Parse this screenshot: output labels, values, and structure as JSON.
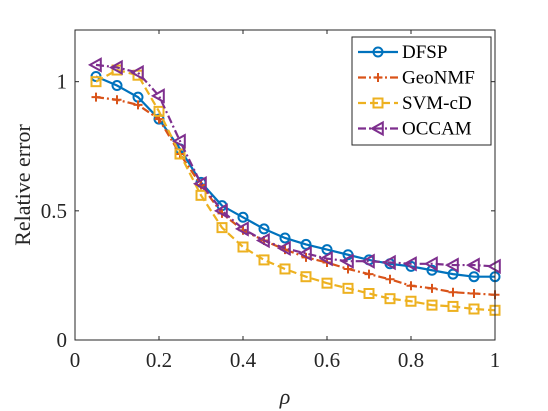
{
  "chart_data": {
    "type": "line",
    "xlabel": "ρ",
    "ylabel": "Relative error",
    "xlim": [
      0,
      1
    ],
    "ylim": [
      0,
      1.2
    ],
    "x_ticks": [
      "0",
      "0.2",
      "0.4",
      "0.6",
      "0.8",
      "1"
    ],
    "y_ticks": [
      "0",
      "0.5",
      "1"
    ],
    "legend_position": "top-right",
    "grid": false,
    "x": [
      0.05,
      0.1,
      0.15,
      0.2,
      0.25,
      0.3,
      0.35,
      0.4,
      0.45,
      0.5,
      0.55,
      0.6,
      0.65,
      0.7,
      0.75,
      0.8,
      0.85,
      0.9,
      0.95,
      1.0
    ],
    "series": [
      {
        "name": "DFSP",
        "color": "#0072BD",
        "marker": "circle",
        "dash": "solid",
        "values": [
          1.02,
          0.985,
          0.94,
          0.855,
          0.74,
          0.61,
          0.52,
          0.475,
          0.43,
          0.395,
          0.37,
          0.35,
          0.33,
          0.31,
          0.295,
          0.285,
          0.27,
          0.255,
          0.245,
          0.245
        ]
      },
      {
        "name": "GeoNMF",
        "color": "#D95319",
        "marker": "plus",
        "dash": "dashdot",
        "values": [
          0.94,
          0.93,
          0.91,
          0.855,
          0.72,
          0.6,
          0.49,
          0.425,
          0.385,
          0.35,
          0.32,
          0.3,
          0.275,
          0.255,
          0.235,
          0.21,
          0.2,
          0.185,
          0.18,
          0.175
        ]
      },
      {
        "name": "SVM-cD",
        "color": "#EDB120",
        "marker": "square",
        "dash": "dashed",
        "values": [
          1.0,
          1.045,
          1.025,
          0.885,
          0.72,
          0.56,
          0.435,
          0.36,
          0.31,
          0.275,
          0.245,
          0.22,
          0.2,
          0.18,
          0.16,
          0.15,
          0.135,
          0.13,
          0.12,
          0.115
        ]
      },
      {
        "name": "OCCAM",
        "color": "#7E2F8E",
        "marker": "triangle-left",
        "dash": "dashdot",
        "values": [
          1.065,
          1.055,
          1.035,
          0.945,
          0.77,
          0.605,
          0.5,
          0.43,
          0.385,
          0.355,
          0.335,
          0.315,
          0.305,
          0.305,
          0.3,
          0.295,
          0.295,
          0.29,
          0.29,
          0.285
        ]
      }
    ]
  }
}
